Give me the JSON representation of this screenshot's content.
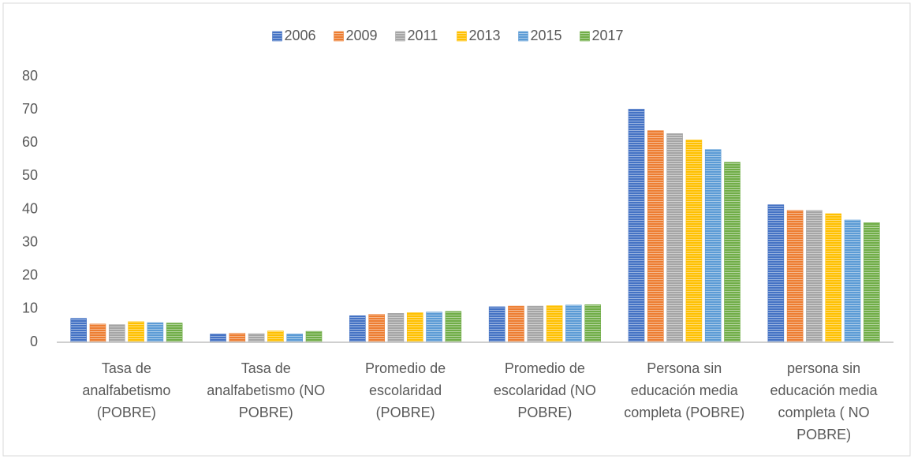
{
  "chart_data": {
    "type": "bar",
    "categories": [
      "Tasa de analfabetismo (POBRE)",
      "Tasa de analfabetismo (NO POBRE)",
      "Promedio de escolaridad (POBRE)",
      "Promedio de escolaridad (NO POBRE)",
      "Persona sin educación media completa (POBRE)",
      "persona sin educación media completa ( NO POBRE)"
    ],
    "series": [
      {
        "name": "2006",
        "color": "#4472c4",
        "values": [
          7.2,
          2.5,
          8.0,
          10.7,
          70.2,
          41.4
        ]
      },
      {
        "name": "2009",
        "color": "#ed7d31",
        "values": [
          5.5,
          2.7,
          8.4,
          10.9,
          63.7,
          39.7
        ]
      },
      {
        "name": "2011",
        "color": "#a5a5a5",
        "values": [
          5.3,
          2.6,
          8.7,
          10.9,
          62.8,
          39.7
        ]
      },
      {
        "name": "2013",
        "color": "#ffc000",
        "values": [
          6.2,
          3.4,
          8.9,
          11.0,
          60.9,
          38.7
        ]
      },
      {
        "name": "2015",
        "color": "#5b9bd5",
        "values": [
          5.9,
          2.5,
          9.1,
          11.2,
          58.0,
          36.8
        ]
      },
      {
        "name": "2017",
        "color": "#70ad47",
        "values": [
          5.8,
          3.3,
          9.3,
          11.3,
          54.2,
          36.0
        ]
      }
    ],
    "ylim": [
      0,
      80
    ],
    "yticks": [
      0,
      10,
      20,
      30,
      40,
      50,
      60,
      70,
      80
    ],
    "legend": "top",
    "grid": false
  }
}
